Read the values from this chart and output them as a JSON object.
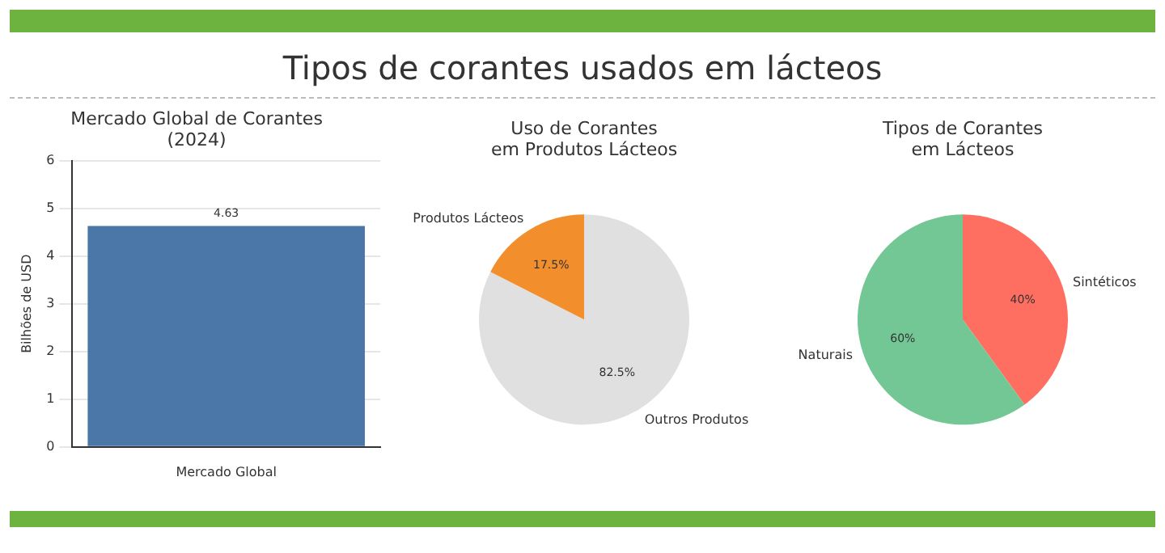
{
  "chart_data": [
    {
      "type": "other",
      "title": "Tipos de corantes usados em lácteos"
    },
    {
      "type": "bar",
      "title": "Mercado Global de Corantes\n(2024)",
      "ylabel": "Bilhões de USD",
      "categories": [
        "Mercado Global"
      ],
      "values": [
        4.63
      ],
      "color": "#4a76a8",
      "ylim": [
        0,
        6
      ],
      "yticks": [
        0,
        1,
        2,
        3,
        4,
        5,
        6
      ],
      "grid": "y",
      "data_labels": true,
      "legend": false
    },
    {
      "type": "pie",
      "title": "Uso de Corantes\nem Produtos Lácteos",
      "categories": [
        "Outros Produtos",
        "Produtos Lácteos"
      ],
      "values": [
        82.5,
        17.5
      ],
      "colors": [
        "#e0e0e0",
        "#f28e2b"
      ],
      "value_labels": [
        "82.5%",
        "17.5%"
      ],
      "legend": false
    },
    {
      "type": "pie",
      "title": "Tipos de Corantes\nem Lácteos",
      "categories": [
        "Sintéticos",
        "Naturais"
      ],
      "values": [
        40,
        60
      ],
      "colors": [
        "#ff6f61",
        "#73c794"
      ],
      "value_labels": [
        "40%",
        "60%"
      ],
      "legend": false
    }
  ]
}
